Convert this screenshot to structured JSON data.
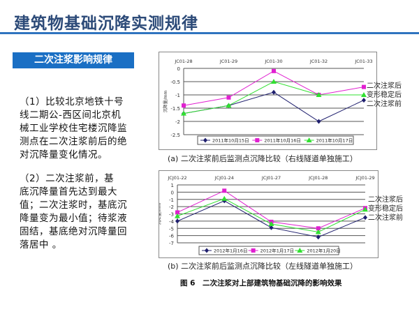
{
  "slide": {
    "title": "建筑物基础沉降实测规律",
    "section": "二次注浆影响规律",
    "para1": [
      "（1）比较北京地铁十号",
      "线二期公-西区间北京机",
      "械工业学校住宅楼沉降监",
      "测点在二次注浆前后的绝",
      "对沉降量变化情况。"
    ],
    "para2": [
      "（2）二次注浆前，基",
      "底沉降量首先达到最大",
      "值；二次注浆时，基底沉",
      "降量变为最小值；待浆液",
      "固结，基底绝对沉降量回",
      "落居中 。"
    ],
    "figure_caption": "图 6　二次注浆对上部建筑物基础沉降的影响效果"
  },
  "chart_data": [
    {
      "type": "line",
      "caption": "(a)  二次注浆前后监测点沉降比较（右线隧道单独施工）",
      "ylabel": "沉降量/mm",
      "categories": [
        "JC01-28",
        "JC01-29",
        "JC01-30",
        "JC01-32",
        "JC01-33"
      ],
      "ylim": [
        -2.5,
        0
      ],
      "yticks": [
        0,
        -0.5,
        -1,
        -1.5,
        -2,
        -2.5
      ],
      "ytick_labels": [
        "0",
        "-0.5",
        "-1",
        "-1.5",
        "-2",
        "-2.5"
      ],
      "grid": true,
      "legend": "bottom",
      "series": [
        {
          "name": "2011年10月15日",
          "color": "#1f1f6e",
          "marker": "diamond",
          "values": [
            -1.7,
            -1.4,
            -0.9,
            -2.0,
            -1.2
          ]
        },
        {
          "name": "2011年10月16日",
          "color": "#e020d0",
          "marker": "square",
          "values": [
            -1.4,
            -1.1,
            -0.1,
            -1.0,
            -0.7
          ]
        },
        {
          "name": "2011年10月17日",
          "color": "#30e030",
          "marker": "triangle",
          "values": [
            -1.7,
            -1.4,
            -0.5,
            -1.0,
            -1.0
          ]
        }
      ],
      "annotations": [
        "二次注浆后",
        "变形稳定后",
        "二次注浆前"
      ]
    },
    {
      "type": "line",
      "caption": "(b)  二次注浆前后监测点沉降比较（左线隧道单独施工）",
      "ylabel": "沉降量/mm",
      "categories": [
        "JCJ01-22",
        "JCJ01-24",
        "JCJ01-27",
        "JCJ01-28",
        "JCJ01-29"
      ],
      "ylim": [
        -7,
        1
      ],
      "yticks": [
        1,
        0,
        -1,
        -2,
        -3,
        -4,
        -5,
        -6,
        -7
      ],
      "ytick_labels": [
        "1",
        "0",
        "-1",
        "-2",
        "-3",
        "-4",
        "-5",
        "-6",
        "-7"
      ],
      "grid": true,
      "legend": "bottom",
      "series": [
        {
          "name": "2012年1月16日",
          "color": "#1f1f6e",
          "marker": "diamond",
          "values": [
            -4.0,
            -1.2,
            -4.9,
            -6.2,
            -3.5
          ]
        },
        {
          "name": "2012年1月17日",
          "color": "#e020d0",
          "marker": "square",
          "values": [
            -2.8,
            0.2,
            -4.1,
            -5.0,
            -2.2
          ]
        },
        {
          "name": "2012年1月20日",
          "color": "#30e030",
          "marker": "triangle",
          "values": [
            -3.3,
            -0.9,
            -4.4,
            -5.5,
            -2.4
          ]
        }
      ],
      "annotations": [
        "二次注浆后",
        "变形稳定后",
        "二次注浆前"
      ]
    }
  ]
}
